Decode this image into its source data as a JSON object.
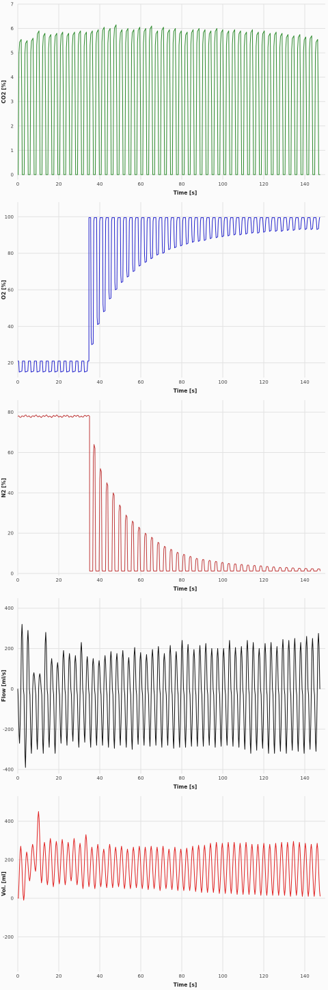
{
  "chart_data": [
    {
      "type": "line",
      "id": "co2",
      "xlabel": "Time [s]",
      "ylabel": "CO2 [%]",
      "xlim": [
        0,
        150
      ],
      "ylim": [
        -0.2,
        7
      ],
      "xticks": [
        0,
        20,
        40,
        60,
        80,
        100,
        120,
        140
      ],
      "yticks": [
        0,
        1,
        2,
        3,
        4,
        5,
        6,
        7
      ],
      "grid": true,
      "color": "#2e8b2e",
      "waveform": {
        "kind": "capnogram",
        "t_start": 0,
        "t_end": 147.5,
        "n_cycles": 51,
        "baseline": 0,
        "peaks": [
          5.55,
          5.5,
          5.6,
          5.9,
          5.8,
          5.75,
          5.8,
          5.85,
          5.8,
          5.85,
          5.9,
          5.85,
          5.9,
          5.95,
          6.05,
          6.0,
          6.15,
          5.95,
          6.0,
          5.95,
          6.05,
          6.0,
          6.1,
          5.9,
          6.05,
          5.95,
          6.0,
          5.9,
          5.85,
          5.95,
          6.0,
          5.95,
          5.9,
          6.0,
          5.95,
          5.9,
          5.95,
          5.9,
          5.85,
          5.95,
          5.85,
          5.9,
          5.8,
          5.85,
          5.8,
          5.75,
          5.7,
          5.75,
          5.65,
          5.7,
          5.55
        ]
      }
    },
    {
      "type": "line",
      "id": "o2",
      "xlabel": "Time [s]",
      "ylabel": "O2 [%]",
      "xlim": [
        0,
        150
      ],
      "ylim": [
        12,
        108
      ],
      "xticks": [
        0,
        20,
        40,
        60,
        80,
        100,
        120,
        140
      ],
      "yticks": [
        20,
        40,
        60,
        80,
        100
      ],
      "grid": true,
      "color": "#2222cc",
      "waveform": {
        "kind": "o2-washin",
        "t_start": 0,
        "t_end": 147.5,
        "n_cycles": 51,
        "switch_time": 35,
        "pre_high": 21,
        "pre_low": 15,
        "post_high": 99.5,
        "post_low": [
          30,
          41,
          48,
          55,
          60,
          64,
          67,
          70,
          73,
          75,
          77,
          79,
          80,
          82,
          83,
          84,
          85,
          86,
          86.5,
          87,
          88,
          88.5,
          89,
          89.5,
          90,
          90,
          90.5,
          91,
          91,
          91.5,
          92,
          92,
          92,
          92.5,
          92.5,
          93
        ]
      }
    },
    {
      "type": "line",
      "id": "n2",
      "xlabel": "Time [s]",
      "ylabel": "N2 [%]",
      "xlim": [
        0,
        150
      ],
      "ylim": [
        -1,
        86
      ],
      "xticks": [
        0,
        20,
        40,
        60,
        80,
        100,
        120,
        140
      ],
      "yticks": [
        0,
        20,
        40,
        60,
        80
      ],
      "grid": true,
      "color": "#c03a3a",
      "waveform": {
        "kind": "n2-washout",
        "t_start": 0,
        "t_end": 147.5,
        "n_cycles": 51,
        "switch_time": 35,
        "pre_level": 78,
        "trough": 1.2,
        "post_peaks": [
          64,
          52,
          45,
          40,
          34,
          29,
          26,
          23,
          20,
          18,
          15.5,
          13.5,
          12,
          10.5,
          9.5,
          8.5,
          7.5,
          7,
          6.5,
          6,
          5.5,
          5,
          4.8,
          4.5,
          4.2,
          4,
          3.8,
          3.5,
          3.3,
          3,
          3,
          2.8,
          2.6,
          2.5,
          2.4,
          2.3
        ]
      }
    },
    {
      "type": "line",
      "id": "flow",
      "xlabel": "Time [s]",
      "ylabel": "Flow [ml/s]",
      "xlim": [
        0,
        150
      ],
      "ylim": [
        -420,
        450
      ],
      "xticks": [
        0,
        20,
        40,
        60,
        80,
        100,
        120,
        140
      ],
      "yticks": [
        -400,
        -200,
        0,
        200,
        400
      ],
      "grid": true,
      "color": "#111111",
      "waveform": {
        "kind": "flow",
        "t_start": 0,
        "t_end": 147.5,
        "n_cycles": 51,
        "peaks": [
          320,
          290,
          80,
          75,
          280,
          150,
          130,
          190,
          175,
          165,
          230,
          160,
          150,
          140,
          165,
          185,
          175,
          190,
          155,
          205,
          180,
          170,
          195,
          210,
          175,
          215,
          185,
          240,
          220,
          195,
          215,
          225,
          200,
          200,
          200,
          240,
          205,
          210,
          240,
          230,
          200,
          225,
          230,
          210,
          245,
          240,
          250,
          230,
          260,
          250,
          275
        ],
        "troughs": [
          -270,
          -390,
          -320,
          -300,
          -320,
          -290,
          -320,
          -270,
          -280,
          -260,
          -290,
          -265,
          -290,
          -280,
          -280,
          -290,
          -295,
          -280,
          -290,
          -300,
          -275,
          -280,
          -285,
          -280,
          -290,
          -280,
          -295,
          -290,
          -290,
          -285,
          -285,
          -285,
          -280,
          -290,
          -285,
          -280,
          -285,
          -290,
          -300,
          -320,
          -305,
          -295,
          -320,
          -320,
          -310,
          -320,
          -305,
          -310,
          -320,
          -300,
          -310
        ]
      }
    },
    {
      "type": "line",
      "id": "vol",
      "xlabel": "Time [s]",
      "ylabel": "Vol. [ml]",
      "xlim": [
        0,
        150
      ],
      "ylim": [
        -380,
        530
      ],
      "xticks": [
        0,
        20,
        40,
        60,
        80,
        100,
        120,
        140
      ],
      "yticks": [
        -200,
        0,
        200,
        400
      ],
      "grid": true,
      "color": "#e02020",
      "waveform": {
        "kind": "volume",
        "t_start": 0,
        "t_end": 147.5,
        "n_cycles": 51,
        "peaks": [
          270,
          240,
          280,
          450,
          290,
          310,
          295,
          305,
          290,
          310,
          285,
          330,
          265,
          280,
          255,
          280,
          265,
          270,
          255,
          265,
          270,
          265,
          270,
          265,
          270,
          255,
          265,
          255,
          260,
          270,
          275,
          275,
          285,
          290,
          285,
          290,
          290,
          285,
          290,
          280,
          280,
          285,
          280,
          285,
          290,
          290,
          295,
          290,
          285,
          280,
          285
        ],
        "troughs": [
          -30,
          -10,
          90,
          140,
          80,
          70,
          60,
          75,
          70,
          90,
          70,
          50,
          60,
          50,
          60,
          55,
          55,
          60,
          50,
          50,
          55,
          50,
          45,
          50,
          40,
          50,
          45,
          40,
          40,
          40,
          35,
          30,
          30,
          30,
          25,
          25,
          25,
          20,
          20,
          20,
          20,
          15,
          15,
          15,
          15,
          15,
          10,
          15,
          10,
          10,
          10
        ]
      }
    }
  ]
}
